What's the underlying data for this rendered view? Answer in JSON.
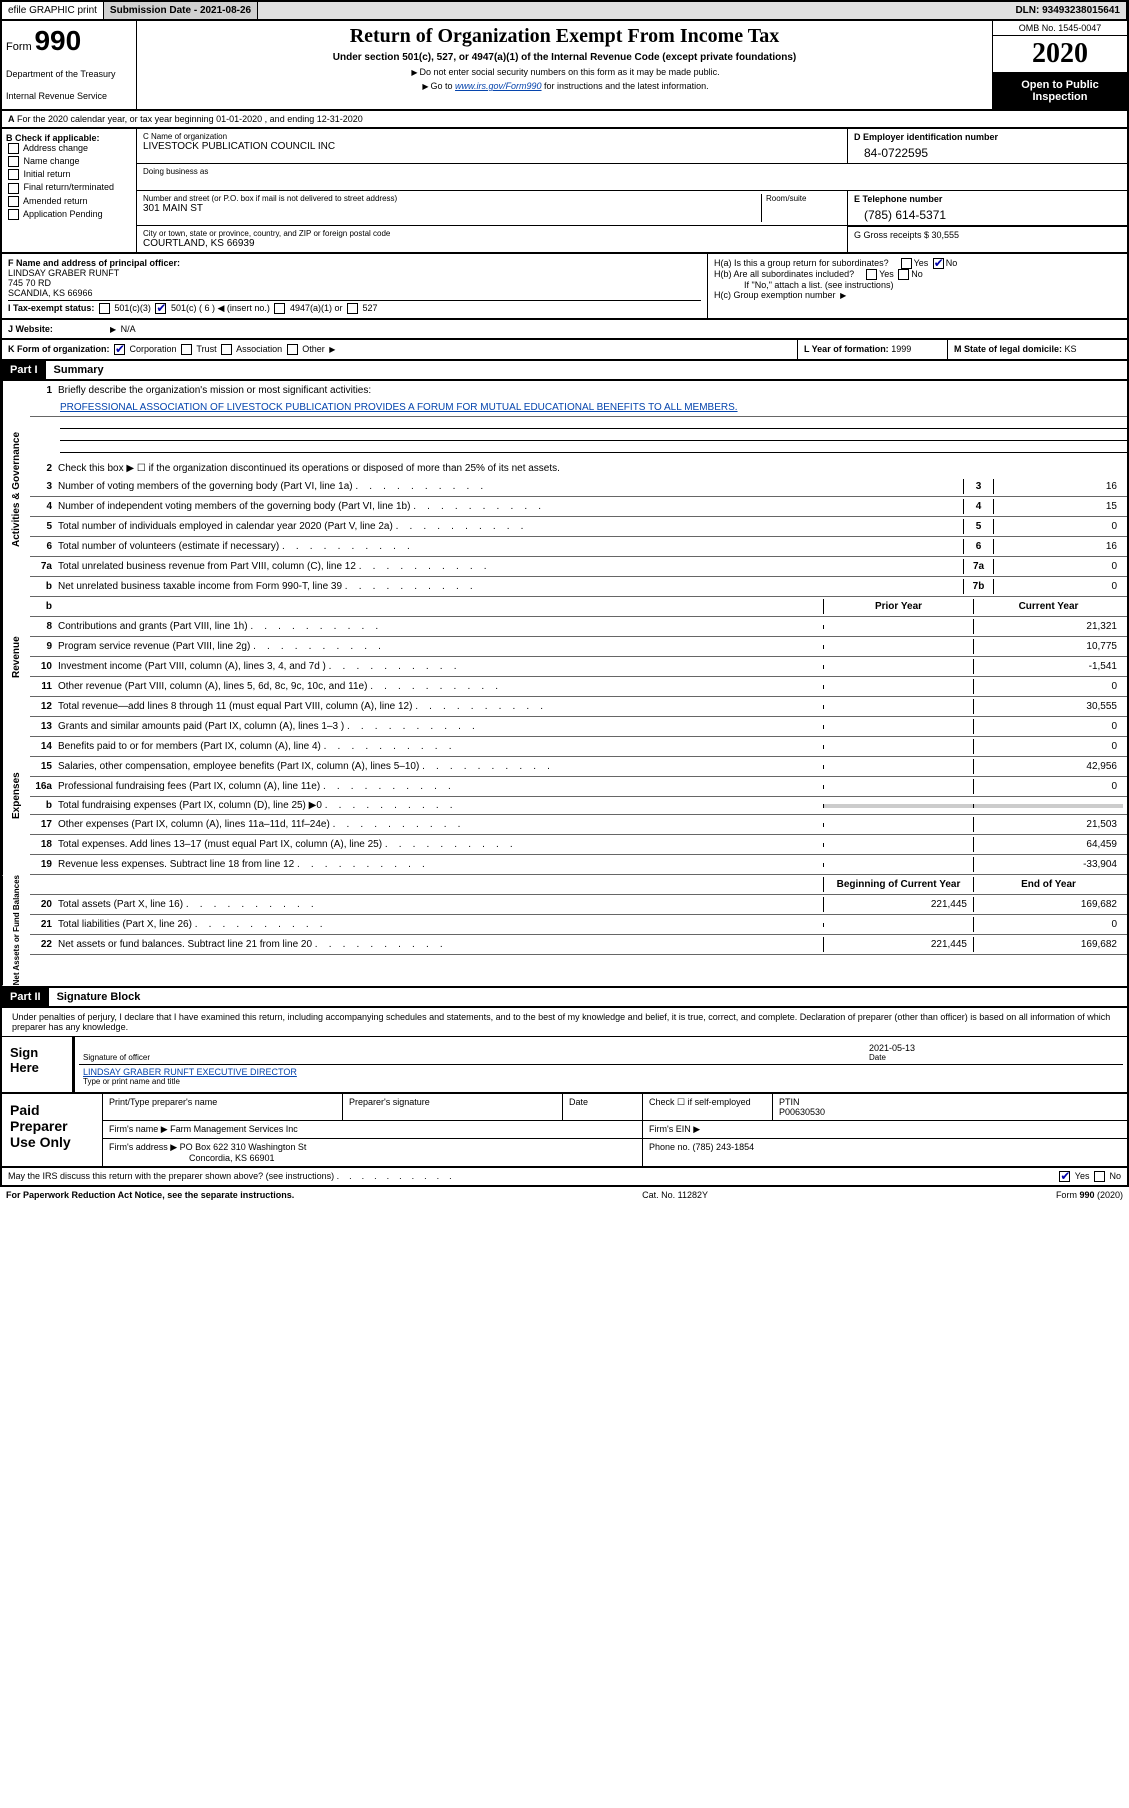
{
  "topbar": {
    "efile": "efile GRAPHIC print",
    "subdate_label": "Submission Date - ",
    "subdate": "2021-08-26",
    "dln_label": "DLN: ",
    "dln": "93493238015641"
  },
  "header": {
    "form": "Form",
    "num": "990",
    "dept": "Department of the Treasury",
    "irs": "Internal Revenue Service",
    "title": "Return of Organization Exempt From Income Tax",
    "sub": "Under section 501(c), 527, or 4947(a)(1) of the Internal Revenue Code (except private foundations)",
    "note1": "Do not enter social security numbers on this form as it may be made public.",
    "note2_pre": "Go to ",
    "note2_link": "www.irs.gov/Form990",
    "note2_post": " for instructions and the latest information.",
    "omb": "OMB No. 1545-0047",
    "year": "2020",
    "open": "Open to Public Inspection"
  },
  "section_a": "For the 2020 calendar year, or tax year beginning 01-01-2020    , and ending 12-31-2020",
  "section_b": {
    "label": "B Check if applicable:",
    "opts": [
      "Address change",
      "Name change",
      "Initial return",
      "Final return/terminated",
      "Amended return",
      "Application Pending"
    ]
  },
  "section_c": {
    "name_label": "C Name of organization",
    "name": "LIVESTOCK PUBLICATION COUNCIL INC",
    "dba": "Doing business as",
    "addr_label": "Number and street (or P.O. box if mail is not delivered to street address)",
    "room": "Room/suite",
    "addr": "301 MAIN ST",
    "city_label": "City or town, state or province, country, and ZIP or foreign postal code",
    "city": "COURTLAND, KS  66939"
  },
  "section_d": {
    "ein_label": "D Employer identification number",
    "ein": "84-0722595",
    "phone_label": "E Telephone number",
    "phone": "(785) 614-5371",
    "gross_label": "G Gross receipts $ ",
    "gross": "30,555"
  },
  "section_f": {
    "label": "F  Name and address of principal officer:",
    "name": "LINDSAY GRABER RUNFT",
    "addr1": "745 70 RD",
    "addr2": "SCANDIA, KS  66966"
  },
  "section_h": {
    "ha": "H(a)  Is this a group return for subordinates?",
    "hb": "H(b)  Are all subordinates included?",
    "hnote": "If \"No,\" attach a list. (see instructions)",
    "hc": "H(c)  Group exemption number"
  },
  "section_i": {
    "label": "I    Tax-exempt status:",
    "opt1": "501(c)(3)",
    "opt2": "501(c) ( 6 )",
    "opt2_note": "(insert no.)",
    "opt3": "4947(a)(1) or",
    "opt4": "527"
  },
  "section_j": {
    "label": "J   Website:",
    "val": "N/A"
  },
  "section_k": {
    "label": "K Form of organization:",
    "opts": [
      "Corporation",
      "Trust",
      "Association",
      "Other"
    ]
  },
  "section_l": {
    "label": "L Year of formation: ",
    "val": "1999"
  },
  "section_m": {
    "label": "M State of legal domicile: ",
    "val": "KS"
  },
  "part1": {
    "hdr": "Part I",
    "title": "Summary"
  },
  "governance": {
    "side": "Activities & Governance",
    "l1_label": "Briefly describe the organization's mission or most significant activities:",
    "l1_val": "PROFESSIONAL ASSOCIATION OF LIVESTOCK PUBLICATION PROVIDES A FORUM FOR MUTUAL EDUCATIONAL BENEFITS TO ALL MEMBERS.",
    "l2": "Check this box ▶ ☐ if the organization discontinued its operations or disposed of more than 25% of its net assets.",
    "rows": [
      {
        "n": "3",
        "t": "Number of voting members of the governing body (Part VI, line 1a)",
        "box": "3",
        "v": "16"
      },
      {
        "n": "4",
        "t": "Number of independent voting members of the governing body (Part VI, line 1b)",
        "box": "4",
        "v": "15"
      },
      {
        "n": "5",
        "t": "Total number of individuals employed in calendar year 2020 (Part V, line 2a)",
        "box": "5",
        "v": "0"
      },
      {
        "n": "6",
        "t": "Total number of volunteers (estimate if necessary)",
        "box": "6",
        "v": "16"
      },
      {
        "n": "7a",
        "t": "Total unrelated business revenue from Part VIII, column (C), line 12",
        "box": "7a",
        "v": "0"
      },
      {
        "n": "b",
        "t": "Net unrelated business taxable income from Form 990-T, line 39",
        "box": "7b",
        "v": "0"
      }
    ]
  },
  "revenue": {
    "side": "Revenue",
    "hdr_prior": "Prior Year",
    "hdr_curr": "Current Year",
    "rows": [
      {
        "n": "8",
        "t": "Contributions and grants (Part VIII, line 1h)",
        "p": "",
        "c": "21,321"
      },
      {
        "n": "9",
        "t": "Program service revenue (Part VIII, line 2g)",
        "p": "",
        "c": "10,775"
      },
      {
        "n": "10",
        "t": "Investment income (Part VIII, column (A), lines 3, 4, and 7d )",
        "p": "",
        "c": "-1,541"
      },
      {
        "n": "11",
        "t": "Other revenue (Part VIII, column (A), lines 5, 6d, 8c, 9c, 10c, and 11e)",
        "p": "",
        "c": "0"
      },
      {
        "n": "12",
        "t": "Total revenue—add lines 8 through 11 (must equal Part VIII, column (A), line 12)",
        "p": "",
        "c": "30,555"
      }
    ]
  },
  "expenses": {
    "side": "Expenses",
    "rows": [
      {
        "n": "13",
        "t": "Grants and similar amounts paid (Part IX, column (A), lines 1–3 )",
        "p": "",
        "c": "0"
      },
      {
        "n": "14",
        "t": "Benefits paid to or for members (Part IX, column (A), line 4)",
        "p": "",
        "c": "0"
      },
      {
        "n": "15",
        "t": "Salaries, other compensation, employee benefits (Part IX, column (A), lines 5–10)",
        "p": "",
        "c": "42,956"
      },
      {
        "n": "16a",
        "t": "Professional fundraising fees (Part IX, column (A), line 11e)",
        "p": "",
        "c": "0",
        "shaded_p": false
      },
      {
        "n": "b",
        "t": "Total fundraising expenses (Part IX, column (D), line 25) ▶0",
        "p": "",
        "c": "",
        "shaded": true
      },
      {
        "n": "17",
        "t": "Other expenses (Part IX, column (A), lines 11a–11d, 11f–24e)",
        "p": "",
        "c": "21,503"
      },
      {
        "n": "18",
        "t": "Total expenses. Add lines 13–17 (must equal Part IX, column (A), line 25)",
        "p": "",
        "c": "64,459"
      },
      {
        "n": "19",
        "t": "Revenue less expenses. Subtract line 18 from line 12",
        "p": "",
        "c": "-33,904"
      }
    ]
  },
  "netassets": {
    "side": "Net Assets or Fund Balances",
    "hdr_begin": "Beginning of Current Year",
    "hdr_end": "End of Year",
    "rows": [
      {
        "n": "20",
        "t": "Total assets (Part X, line 16)",
        "b": "221,445",
        "e": "169,682"
      },
      {
        "n": "21",
        "t": "Total liabilities (Part X, line 26)",
        "b": "",
        "e": "0"
      },
      {
        "n": "22",
        "t": "Net assets or fund balances. Subtract line 21 from line 20",
        "b": "221,445",
        "e": "169,682"
      }
    ]
  },
  "part2": {
    "hdr": "Part II",
    "title": "Signature Block"
  },
  "sig": {
    "perjury": "Under penalties of perjury, I declare that I have examined this return, including accompanying schedules and statements, and to the best of my knowledge and belief, it is true, correct, and complete. Declaration of preparer (other than officer) is based on all information of which preparer has any knowledge.",
    "sign_here": "Sign Here",
    "sig_officer": "Signature of officer",
    "date_label": "Date",
    "date": "2021-05-13",
    "name": "LINDSAY GRABER RUNFT EXECUTIVE DIRECTOR",
    "name_sub": "Type or print name and title"
  },
  "paid": {
    "label": "Paid Preparer Use Only",
    "h_name": "Print/Type preparer's name",
    "h_sig": "Preparer's signature",
    "h_date": "Date",
    "h_check": "Check ☐ if self-employed",
    "h_ptin": "PTIN",
    "ptin": "P00630530",
    "firm_label": "Firm's name   ▶",
    "firm": "Farm Management Services Inc",
    "ein_label": "Firm's EIN ▶",
    "addr_label": "Firm's address ▶",
    "addr1": "PO Box 622 310 Washington St",
    "addr2": "Concordia, KS  66901",
    "phone_label": "Phone no. ",
    "phone": "(785) 243-1854"
  },
  "footer": {
    "discuss": "May the IRS discuss this return with the preparer shown above? (see instructions)",
    "yes": "Yes",
    "no": "No",
    "paperwork": "For Paperwork Reduction Act Notice, see the separate instructions.",
    "cat": "Cat. No. 11282Y",
    "form": "Form 990 (2020)"
  }
}
